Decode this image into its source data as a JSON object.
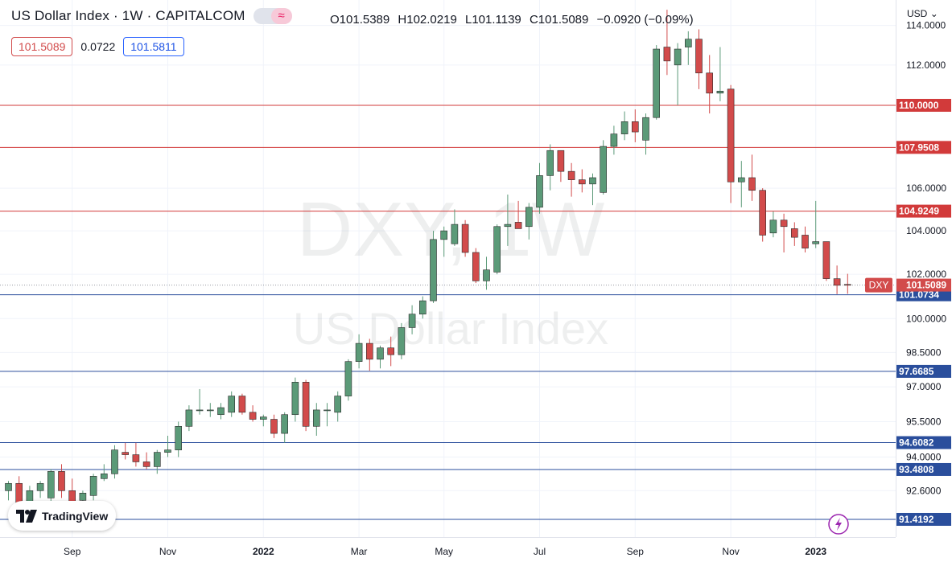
{
  "header": {
    "title": "US Dollar Index · 1W · CAPITALCOM",
    "ohlc_open": "O101.5389",
    "ohlc_high": "H102.0219",
    "ohlc_low": "L101.1139",
    "ohlc_close": "C101.5089",
    "ohlc_change": "−0.0920 (−0.09%)",
    "bid": "101.5089",
    "spread": "0.0722",
    "ask": "101.5811",
    "currency_menu": "USD",
    "toggle_icon": "wave-icon"
  },
  "watermark": {
    "symbol": "DXY, 1W",
    "name": "US Dollar Index"
  },
  "branding": {
    "logo_text": "TradingView"
  },
  "colors": {
    "up": "#5b9a78",
    "down": "#d24b4b",
    "resistance": "#d23a3a",
    "support": "#2a4e9c",
    "price_tag": "#d24b4b"
  },
  "chart_data": {
    "type": "candlestick",
    "title": "US Dollar Index · 1W · CAPITALCOM",
    "y_axis": {
      "scale": "log",
      "min": 90.7,
      "max": 115.3,
      "ticks": [
        "114.0000",
        "112.0000",
        "110.0000",
        "106.0000",
        "104.0000",
        "102.0000",
        "100.0000",
        "98.5000",
        "97.0000",
        "95.5000",
        "94.0000",
        "92.6000"
      ]
    },
    "x_axis": {
      "tick_labels": [
        {
          "label": "Sep",
          "index": 6
        },
        {
          "label": "Nov",
          "index": 15
        },
        {
          "label": "2022",
          "index": 24
        },
        {
          "label": "Mar",
          "index": 33
        },
        {
          "label": "May",
          "index": 41
        },
        {
          "label": "Jul",
          "index": 50
        },
        {
          "label": "Sep",
          "index": 59
        },
        {
          "label": "Nov",
          "index": 68
        },
        {
          "label": "2023",
          "index": 76
        }
      ]
    },
    "levels": [
      {
        "label": "110.0000",
        "value": 110.0,
        "kind": "resistance"
      },
      {
        "label": "107.9508",
        "value": 107.95,
        "kind": "resistance"
      },
      {
        "label": "104.9249",
        "value": 104.92,
        "kind": "resistance"
      },
      {
        "label": "101.0734",
        "value": 101.07,
        "kind": "support"
      },
      {
        "label": "97.6685",
        "value": 97.67,
        "kind": "support"
      },
      {
        "label": "94.6082",
        "value": 94.61,
        "kind": "support"
      },
      {
        "label": "93.4808",
        "value": 93.48,
        "kind": "support"
      },
      {
        "label": "91.4192",
        "value": 91.42,
        "kind": "support"
      }
    ],
    "current_price": {
      "symbol": "DXY",
      "value": 101.5089,
      "label": "101.5089"
    },
    "candles": [
      {
        "o": 92.6,
        "h": 93.0,
        "l": 92.2,
        "c": 92.9
      },
      {
        "o": 92.9,
        "h": 93.2,
        "l": 91.8,
        "c": 92.0
      },
      {
        "o": 92.1,
        "h": 92.8,
        "l": 91.6,
        "c": 92.6
      },
      {
        "o": 92.6,
        "h": 93.0,
        "l": 92.3,
        "c": 92.9
      },
      {
        "o": 92.3,
        "h": 93.5,
        "l": 91.9,
        "c": 93.4
      },
      {
        "o": 93.4,
        "h": 93.7,
        "l": 92.3,
        "c": 92.6
      },
      {
        "o": 92.6,
        "h": 93.1,
        "l": 91.9,
        "c": 92.1
      },
      {
        "o": 92.2,
        "h": 92.6,
        "l": 91.8,
        "c": 92.5
      },
      {
        "o": 92.4,
        "h": 93.3,
        "l": 92.2,
        "c": 93.2
      },
      {
        "o": 93.1,
        "h": 93.7,
        "l": 93.0,
        "c": 93.3
      },
      {
        "o": 93.3,
        "h": 94.5,
        "l": 93.1,
        "c": 94.3
      },
      {
        "o": 94.2,
        "h": 94.6,
        "l": 93.9,
        "c": 94.1
      },
      {
        "o": 94.1,
        "h": 94.6,
        "l": 93.6,
        "c": 93.8
      },
      {
        "o": 93.8,
        "h": 94.2,
        "l": 93.5,
        "c": 93.6
      },
      {
        "o": 93.6,
        "h": 94.3,
        "l": 93.3,
        "c": 94.2
      },
      {
        "o": 94.2,
        "h": 94.9,
        "l": 94.0,
        "c": 94.3
      },
      {
        "o": 94.3,
        "h": 95.5,
        "l": 94.0,
        "c": 95.3
      },
      {
        "o": 95.3,
        "h": 96.2,
        "l": 95.1,
        "c": 96.0
      },
      {
        "o": 96.0,
        "h": 96.9,
        "l": 95.8,
        "c": 96.0
      },
      {
        "o": 96.0,
        "h": 96.3,
        "l": 95.7,
        "c": 96.0
      },
      {
        "o": 95.8,
        "h": 96.3,
        "l": 95.6,
        "c": 96.1
      },
      {
        "o": 95.9,
        "h": 96.8,
        "l": 95.7,
        "c": 96.6
      },
      {
        "o": 96.6,
        "h": 96.7,
        "l": 95.8,
        "c": 95.9
      },
      {
        "o": 95.9,
        "h": 96.2,
        "l": 95.5,
        "c": 95.6
      },
      {
        "o": 95.6,
        "h": 95.8,
        "l": 95.3,
        "c": 95.7
      },
      {
        "o": 95.6,
        "h": 95.8,
        "l": 94.8,
        "c": 95.0
      },
      {
        "o": 95.0,
        "h": 95.9,
        "l": 94.6,
        "c": 95.8
      },
      {
        "o": 95.8,
        "h": 97.4,
        "l": 95.5,
        "c": 97.2
      },
      {
        "o": 97.2,
        "h": 97.3,
        "l": 95.1,
        "c": 95.3
      },
      {
        "o": 95.3,
        "h": 96.3,
        "l": 94.9,
        "c": 96.0
      },
      {
        "o": 96.0,
        "h": 96.3,
        "l": 95.3,
        "c": 96.0
      },
      {
        "o": 95.9,
        "h": 96.8,
        "l": 95.5,
        "c": 96.6
      },
      {
        "o": 96.6,
        "h": 98.2,
        "l": 96.4,
        "c": 98.1
      },
      {
        "o": 98.1,
        "h": 99.3,
        "l": 97.8,
        "c": 98.9
      },
      {
        "o": 98.9,
        "h": 99.1,
        "l": 97.7,
        "c": 98.2
      },
      {
        "o": 98.2,
        "h": 98.8,
        "l": 97.8,
        "c": 98.7
      },
      {
        "o": 98.7,
        "h": 99.2,
        "l": 97.9,
        "c": 98.4
      },
      {
        "o": 98.4,
        "h": 99.8,
        "l": 98.2,
        "c": 99.6
      },
      {
        "o": 99.6,
        "h": 100.6,
        "l": 99.3,
        "c": 100.2
      },
      {
        "o": 100.2,
        "h": 101.0,
        "l": 100.0,
        "c": 100.8
      },
      {
        "o": 100.8,
        "h": 104.0,
        "l": 100.7,
        "c": 103.6
      },
      {
        "o": 103.6,
        "h": 104.2,
        "l": 102.8,
        "c": 104.0
      },
      {
        "o": 103.4,
        "h": 105.0,
        "l": 103.3,
        "c": 104.3
      },
      {
        "o": 104.3,
        "h": 104.5,
        "l": 102.8,
        "c": 103.0
      },
      {
        "o": 103.0,
        "h": 103.2,
        "l": 101.6,
        "c": 101.7
      },
      {
        "o": 101.7,
        "h": 102.8,
        "l": 101.3,
        "c": 102.2
      },
      {
        "o": 102.1,
        "h": 104.3,
        "l": 102.0,
        "c": 104.2
      },
      {
        "o": 104.2,
        "h": 105.7,
        "l": 103.3,
        "c": 104.3
      },
      {
        "o": 104.4,
        "h": 105.4,
        "l": 104.2,
        "c": 104.1
      },
      {
        "o": 104.2,
        "h": 105.3,
        "l": 103.6,
        "c": 105.1
      },
      {
        "o": 105.1,
        "h": 107.2,
        "l": 104.8,
        "c": 106.6
      },
      {
        "o": 106.6,
        "h": 108.1,
        "l": 105.9,
        "c": 107.8
      },
      {
        "o": 107.8,
        "h": 107.8,
        "l": 106.3,
        "c": 106.8
      },
      {
        "o": 106.8,
        "h": 107.2,
        "l": 105.6,
        "c": 106.4
      },
      {
        "o": 106.4,
        "h": 106.9,
        "l": 105.8,
        "c": 106.2
      },
      {
        "o": 106.2,
        "h": 106.7,
        "l": 105.2,
        "c": 106.5
      },
      {
        "o": 105.8,
        "h": 108.3,
        "l": 105.7,
        "c": 108.0
      },
      {
        "o": 108.0,
        "h": 109.0,
        "l": 107.6,
        "c": 108.6
      },
      {
        "o": 108.6,
        "h": 109.7,
        "l": 108.3,
        "c": 109.2
      },
      {
        "o": 109.2,
        "h": 109.8,
        "l": 108.2,
        "c": 108.7
      },
      {
        "o": 108.3,
        "h": 109.6,
        "l": 107.6,
        "c": 109.4
      },
      {
        "o": 109.4,
        "h": 113.0,
        "l": 109.3,
        "c": 112.8
      },
      {
        "o": 112.9,
        "h": 114.8,
        "l": 111.5,
        "c": 112.2
      },
      {
        "o": 112.0,
        "h": 113.1,
        "l": 110.0,
        "c": 112.8
      },
      {
        "o": 112.9,
        "h": 113.7,
        "l": 112.0,
        "c": 113.3
      },
      {
        "o": 113.3,
        "h": 113.8,
        "l": 110.8,
        "c": 111.6
      },
      {
        "o": 111.6,
        "h": 112.5,
        "l": 109.6,
        "c": 110.6
      },
      {
        "o": 110.6,
        "h": 112.9,
        "l": 110.2,
        "c": 110.7
      },
      {
        "o": 110.8,
        "h": 111.0,
        "l": 105.3,
        "c": 106.3
      },
      {
        "o": 106.3,
        "h": 107.3,
        "l": 105.1,
        "c": 106.5
      },
      {
        "o": 106.5,
        "h": 107.6,
        "l": 105.4,
        "c": 105.9
      },
      {
        "o": 105.9,
        "h": 106.0,
        "l": 103.5,
        "c": 103.8
      },
      {
        "o": 103.9,
        "h": 104.9,
        "l": 103.7,
        "c": 104.5
      },
      {
        "o": 104.5,
        "h": 104.8,
        "l": 103.0,
        "c": 104.2
      },
      {
        "o": 104.1,
        "h": 104.4,
        "l": 103.3,
        "c": 103.7
      },
      {
        "o": 103.8,
        "h": 104.2,
        "l": 103.0,
        "c": 103.2
      },
      {
        "o": 103.4,
        "h": 105.4,
        "l": 103.2,
        "c": 103.5
      },
      {
        "o": 103.5,
        "h": 103.5,
        "l": 101.7,
        "c": 101.8
      },
      {
        "o": 101.8,
        "h": 102.4,
        "l": 101.1,
        "c": 101.5
      },
      {
        "o": 101.5389,
        "h": 102.0219,
        "l": 101.1139,
        "c": 101.5089
      }
    ]
  }
}
